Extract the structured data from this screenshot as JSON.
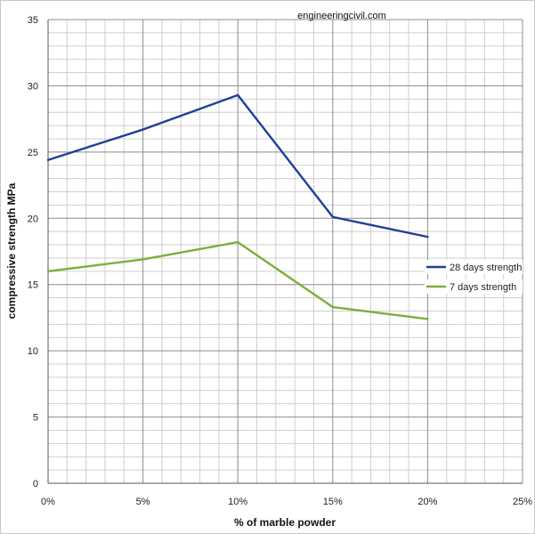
{
  "watermark": "engineeringcivil.com",
  "chart_data": {
    "type": "line",
    "x": [
      "0%",
      "5%",
      "10%",
      "15%",
      "20%"
    ],
    "x_values": [
      0,
      5,
      10,
      15,
      20
    ],
    "xlim": [
      0,
      25
    ],
    "xticks": [
      "0%",
      "5%",
      "10%",
      "15%",
      "20%",
      "25%"
    ],
    "ylim": [
      0,
      35
    ],
    "yticks": [
      "0",
      "5",
      "10",
      "15",
      "20",
      "25",
      "30",
      "35"
    ],
    "xlabel": "% of marble powder",
    "ylabel": "compressive strength MPa",
    "grid": true,
    "legend_position": "right",
    "series": [
      {
        "name": "28 days strength",
        "color": "#1f3f99",
        "values": [
          24.4,
          26.7,
          29.3,
          20.1,
          18.6
        ]
      },
      {
        "name": "7 days strength",
        "color": "#7dae3a",
        "values": [
          16.0,
          16.9,
          18.2,
          13.3,
          12.4
        ]
      }
    ]
  }
}
